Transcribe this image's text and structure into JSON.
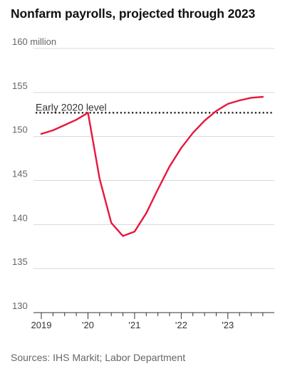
{
  "title": "Nonfarm payrolls, projected through 2023",
  "source": "Sources: IHS Markit; Labor Department",
  "chart_data": {
    "type": "line",
    "title": "Nonfarm payrolls, projected through 2023",
    "xlabel": "",
    "ylabel": "",
    "y_unit": "million",
    "ylim": [
      130,
      160
    ],
    "xlim": [
      2019.0,
      2023.95
    ],
    "y_ticks": [
      130,
      135,
      140,
      145,
      150,
      155,
      160
    ],
    "y_tick_labels": [
      "130",
      "135",
      "140",
      "145",
      "150",
      "155",
      "160 million"
    ],
    "x_major_ticks": [
      2019,
      2020,
      2021,
      2022,
      2023
    ],
    "x_tick_labels": [
      "2019",
      "'20",
      "'21",
      "'22",
      "'23"
    ],
    "x_minor_ticks": [
      2019.25,
      2019.5,
      2019.75,
      2020.25,
      2020.5,
      2020.75,
      2021.25,
      2021.5,
      2021.75,
      2022.25,
      2022.5,
      2022.75,
      2023.25,
      2023.5,
      2023.75
    ],
    "grid": true,
    "reference_line": {
      "label": "Early 2020 level",
      "value": 152.7
    },
    "series": [
      {
        "color": "#e8173e",
        "x": [
          2019.0,
          2019.25,
          2019.5,
          2019.75,
          2020.0,
          2020.25,
          2020.5,
          2020.75,
          2021.0,
          2021.25,
          2021.5,
          2021.75,
          2022.0,
          2022.25,
          2022.5,
          2022.75,
          2023.0,
          2023.25,
          2023.5,
          2023.75
        ],
        "values": [
          150.3,
          150.7,
          151.3,
          151.9,
          152.7,
          145.2,
          140.2,
          138.7,
          139.2,
          141.3,
          144.0,
          146.6,
          148.7,
          150.4,
          151.8,
          152.9,
          153.7,
          154.1,
          154.4,
          154.5
        ]
      }
    ]
  }
}
